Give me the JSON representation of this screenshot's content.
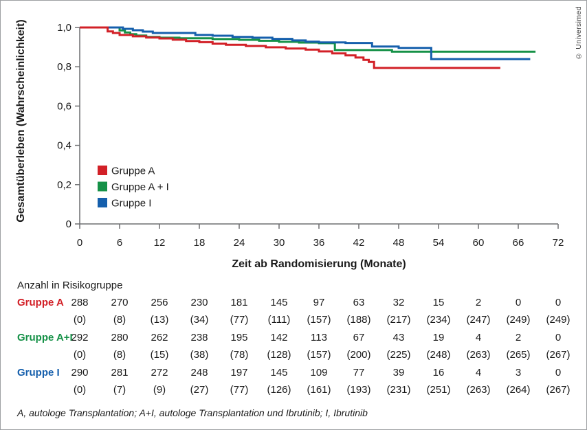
{
  "watermark": "© Universimed",
  "chart_data": {
    "type": "line",
    "subtype": "kaplan-meier-step",
    "title": "",
    "xlabel": "Zeit ab Randomisierung (Monate)",
    "ylabel": "Gesamtüberleben (Wahrscheinlichkeit)",
    "xlim": [
      0,
      72
    ],
    "ylim": [
      0,
      1
    ],
    "grid": false,
    "legend_position": "inside-lower-left",
    "x_ticks": [
      0,
      6,
      12,
      18,
      24,
      30,
      36,
      42,
      48,
      54,
      60,
      66,
      72
    ],
    "y_ticks": [
      {
        "v": 0,
        "label": "0"
      },
      {
        "v": 0.2,
        "label": "0,2"
      },
      {
        "v": 0.4,
        "label": "0,4"
      },
      {
        "v": 0.6,
        "label": "0,6"
      },
      {
        "v": 0.8,
        "label": "0,8"
      },
      {
        "v": 1.0,
        "label": "1,0"
      }
    ],
    "series": [
      {
        "name": "Gruppe A",
        "color": "#d22027",
        "points": [
          [
            0,
            1.0
          ],
          [
            3.5,
            1.0
          ],
          [
            4.2,
            0.98
          ],
          [
            5,
            0.972
          ],
          [
            6,
            0.962
          ],
          [
            8,
            0.955
          ],
          [
            10,
            0.949
          ],
          [
            12,
            0.944
          ],
          [
            14,
            0.938
          ],
          [
            16,
            0.931
          ],
          [
            18,
            0.925
          ],
          [
            20,
            0.918
          ],
          [
            22,
            0.912
          ],
          [
            25,
            0.906
          ],
          [
            28,
            0.899
          ],
          [
            31,
            0.893
          ],
          [
            34,
            0.887
          ],
          [
            36,
            0.878
          ],
          [
            38,
            0.868
          ],
          [
            40,
            0.858
          ],
          [
            41.5,
            0.847
          ],
          [
            42.7,
            0.835
          ],
          [
            43.5,
            0.824
          ],
          [
            44.3,
            0.794
          ],
          [
            63.3,
            0.794
          ]
        ]
      },
      {
        "name": "Gruppe A + I",
        "color": "#159147",
        "points": [
          [
            0,
            1.0
          ],
          [
            5.2,
            1.0
          ],
          [
            6,
            0.985
          ],
          [
            6.8,
            0.975
          ],
          [
            7.6,
            0.966
          ],
          [
            8.5,
            0.959
          ],
          [
            10,
            0.952
          ],
          [
            12,
            0.948
          ],
          [
            15,
            0.945
          ],
          [
            20,
            0.941
          ],
          [
            24,
            0.937
          ],
          [
            27,
            0.932
          ],
          [
            30,
            0.927
          ],
          [
            33,
            0.923
          ],
          [
            36,
            0.92
          ],
          [
            38.4,
            0.885
          ],
          [
            47,
            0.877
          ],
          [
            68.6,
            0.877
          ]
        ]
      },
      {
        "name": "Gruppe I",
        "color": "#155fac",
        "points": [
          [
            0,
            1.0
          ],
          [
            5.7,
            1.0
          ],
          [
            6.5,
            0.993
          ],
          [
            8,
            0.986
          ],
          [
            9.5,
            0.979
          ],
          [
            11,
            0.972
          ],
          [
            17.4,
            0.962
          ],
          [
            20,
            0.958
          ],
          [
            23,
            0.952
          ],
          [
            26,
            0.948
          ],
          [
            29,
            0.942
          ],
          [
            32,
            0.934
          ],
          [
            34,
            0.928
          ],
          [
            36,
            0.924
          ],
          [
            40,
            0.921
          ],
          [
            44,
            0.903
          ],
          [
            48,
            0.896
          ],
          [
            52.9,
            0.839
          ],
          [
            67.8,
            0.839
          ]
        ]
      }
    ]
  },
  "risk_table": {
    "title": "Anzahl in Risikogruppe",
    "rows": [
      {
        "label": "Gruppe A",
        "color": "#d22027",
        "counts": [
          "288",
          "270",
          "256",
          "230",
          "181",
          "145",
          "97",
          "63",
          "32",
          "15",
          "2",
          "0",
          "0"
        ],
        "events": [
          "(0)",
          "(8)",
          "(13)",
          "(34)",
          "(77)",
          "(111)",
          "(157)",
          "(188)",
          "(217)",
          "(234)",
          "(247)",
          "(249)",
          "(249)"
        ]
      },
      {
        "label": "Gruppe A+I",
        "color": "#159147",
        "counts": [
          "292",
          "280",
          "262",
          "238",
          "195",
          "142",
          "113",
          "67",
          "43",
          "19",
          "4",
          "2",
          "0"
        ],
        "events": [
          "(0)",
          "(8)",
          "(15)",
          "(38)",
          "(78)",
          "(128)",
          "(157)",
          "(200)",
          "(225)",
          "(248)",
          "(263)",
          "(265)",
          "(267)"
        ]
      },
      {
        "label": "Gruppe I",
        "color": "#155fac",
        "counts": [
          "290",
          "281",
          "272",
          "248",
          "197",
          "145",
          "109",
          "77",
          "39",
          "16",
          "4",
          "3",
          "0"
        ],
        "events": [
          "(0)",
          "(7)",
          "(9)",
          "(27)",
          "(77)",
          "(126)",
          "(161)",
          "(193)",
          "(231)",
          "(251)",
          "(263)",
          "(264)",
          "(267)"
        ]
      }
    ]
  },
  "footnote": "A, autologe Transplantation; A+I, autologe Transplantation und Ibrutinib; I, Ibrutinib"
}
